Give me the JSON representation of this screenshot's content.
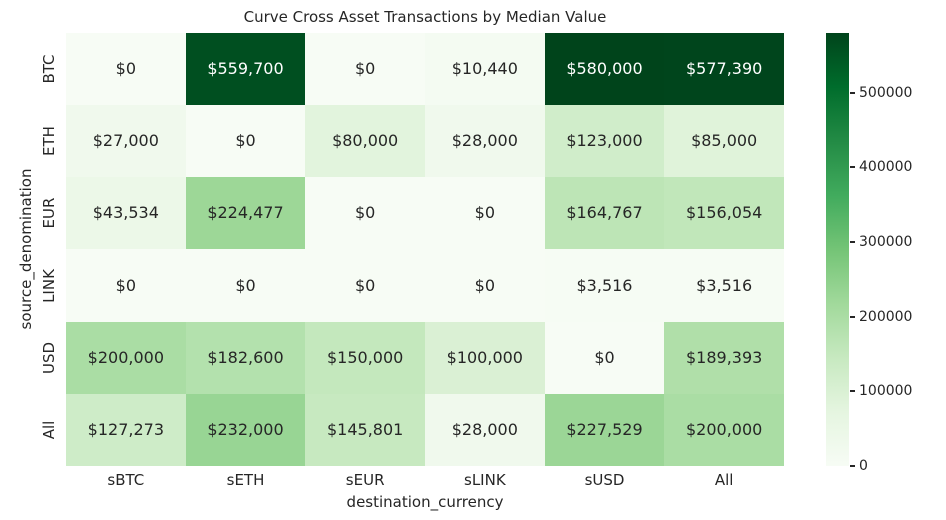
{
  "chart_data": {
    "type": "heatmap",
    "title": "Curve Cross Asset Transactions by Median Value",
    "xlabel": "destination_currency",
    "ylabel": "source_denomination",
    "columns": [
      "sBTC",
      "sETH",
      "sEUR",
      "sLINK",
      "sUSD",
      "All"
    ],
    "rows": [
      "BTC",
      "ETH",
      "EUR",
      "LINK",
      "USD",
      "All"
    ],
    "values": [
      [
        0,
        559700,
        0,
        10440,
        580000,
        577390
      ],
      [
        27000,
        0,
        80000,
        28000,
        123000,
        85000
      ],
      [
        43534,
        224477,
        0,
        0,
        164767,
        156054
      ],
      [
        0,
        0,
        0,
        0,
        3516,
        3516
      ],
      [
        200000,
        182600,
        150000,
        100000,
        0,
        189393
      ],
      [
        127273,
        232000,
        145801,
        28000,
        227529,
        200000
      ]
    ],
    "cell_labels": [
      [
        "$0",
        "$559,700",
        "$0",
        "$10,440",
        "$580,000",
        "$577,390"
      ],
      [
        "$27,000",
        "$0",
        "$80,000",
        "$28,000",
        "$123,000",
        "$85,000"
      ],
      [
        "$43,534",
        "$224,477",
        "$0",
        "$0",
        "$164,767",
        "$156,054"
      ],
      [
        "$0",
        "$0",
        "$0",
        "$0",
        "$3,516",
        "$3,516"
      ],
      [
        "$200,000",
        "$182,600",
        "$150,000",
        "$100,000",
        "$0",
        "$189,393"
      ],
      [
        "$127,273",
        "$232,000",
        "$145,801",
        "$28,000",
        "$227,529",
        "$200,000"
      ]
    ],
    "vmin": 0,
    "vmax": 580000,
    "colorbar_ticks": [
      0,
      100000,
      200000,
      300000,
      400000,
      500000
    ],
    "colorbar_tick_labels": [
      "0",
      "100000",
      "200000",
      "300000",
      "400000",
      "500000"
    ],
    "colormap": {
      "name": "Greens",
      "stops": [
        "#f7fcf5",
        "#e5f5e0",
        "#c7e9c0",
        "#a1d99b",
        "#74c476",
        "#41ab5d",
        "#238b45",
        "#006d2c",
        "#00441b"
      ]
    },
    "grid": false,
    "legend_position": "colorbar-right"
  },
  "colors": {
    "background": "#ffffff",
    "text": "#262626",
    "annot_on_dark": "#ffffff"
  }
}
